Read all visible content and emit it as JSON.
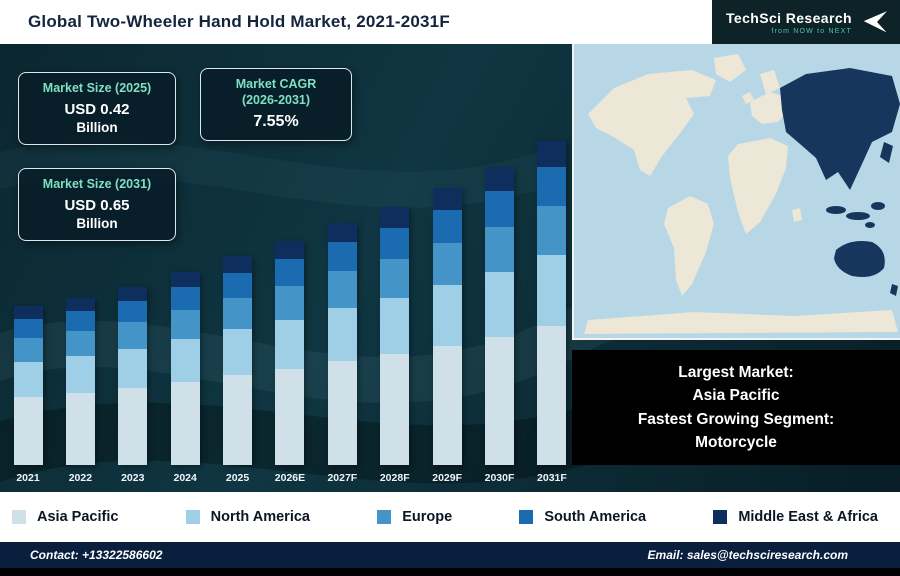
{
  "header": {
    "title": "Global Two-Wheeler Hand Hold Market, 2021-2031F",
    "logo": {
      "brand": "TechSci Research",
      "tagline": "from NOW to NEXT"
    }
  },
  "info_boxes": {
    "size_2025": {
      "title": "Market Size (2025)",
      "value": "USD 0.42",
      "unit": "Billion"
    },
    "cagr": {
      "title_line1": "Market CAGR",
      "title_line2": "(2026-2031)",
      "value": "7.55%"
    },
    "size_2031": {
      "title": "Market Size (2031)",
      "value": "USD 0.65",
      "unit": "Billion"
    }
  },
  "map_panel": {
    "largest_market_label": "Largest Market:",
    "largest_market_value": "Asia Pacific",
    "fastest_segment_label": "Fastest Growing Segment:",
    "fastest_segment_value": "Motorcycle"
  },
  "chart_data": {
    "type": "bar",
    "stacked": true,
    "title": "Global Two-Wheeler Hand Hold Market, 2021-2031F",
    "unit": "USD Billion",
    "ylim": [
      0,
      0.7
    ],
    "grid": false,
    "legend_position": "bottom",
    "categories": [
      "2021",
      "2022",
      "2023",
      "2024",
      "2025",
      "2026E",
      "2027F",
      "2028F",
      "2029F",
      "2030F",
      "2031F"
    ],
    "totals_estimated": [
      0.32,
      0.34,
      0.36,
      0.39,
      0.42,
      0.45,
      0.49,
      0.52,
      0.56,
      0.6,
      0.65
    ],
    "series": [
      {
        "name": "Asia Pacific",
        "color": "#cfe0e8",
        "values": [
          0.138,
          0.146,
          0.155,
          0.168,
          0.181,
          0.194,
          0.211,
          0.224,
          0.241,
          0.258,
          0.28
        ]
      },
      {
        "name": "North America",
        "color": "#9ecfe6",
        "values": [
          0.07,
          0.075,
          0.079,
          0.086,
          0.092,
          0.099,
          0.108,
          0.114,
          0.123,
          0.132,
          0.143
        ]
      },
      {
        "name": "Europe",
        "color": "#4494c8",
        "values": [
          0.048,
          0.051,
          0.054,
          0.059,
          0.063,
          0.068,
          0.074,
          0.078,
          0.084,
          0.09,
          0.098
        ]
      },
      {
        "name": "South America",
        "color": "#1a6bb0",
        "values": [
          0.038,
          0.041,
          0.043,
          0.047,
          0.05,
          0.054,
          0.059,
          0.062,
          0.067,
          0.072,
          0.078
        ]
      },
      {
        "name": "Middle East & Africa",
        "color": "#0e2f5e",
        "values": [
          0.026,
          0.027,
          0.029,
          0.031,
          0.034,
          0.036,
          0.039,
          0.042,
          0.045,
          0.048,
          0.052
        ]
      }
    ],
    "annotations": {
      "market_size_2025": "USD 0.42 Billion",
      "market_size_2031": "USD 0.65 Billion",
      "cagr_2026_2031": "7.55%"
    }
  },
  "footer": {
    "contact": "Contact: +13322586602",
    "email": "Email: sales@techsciresearch.com"
  }
}
